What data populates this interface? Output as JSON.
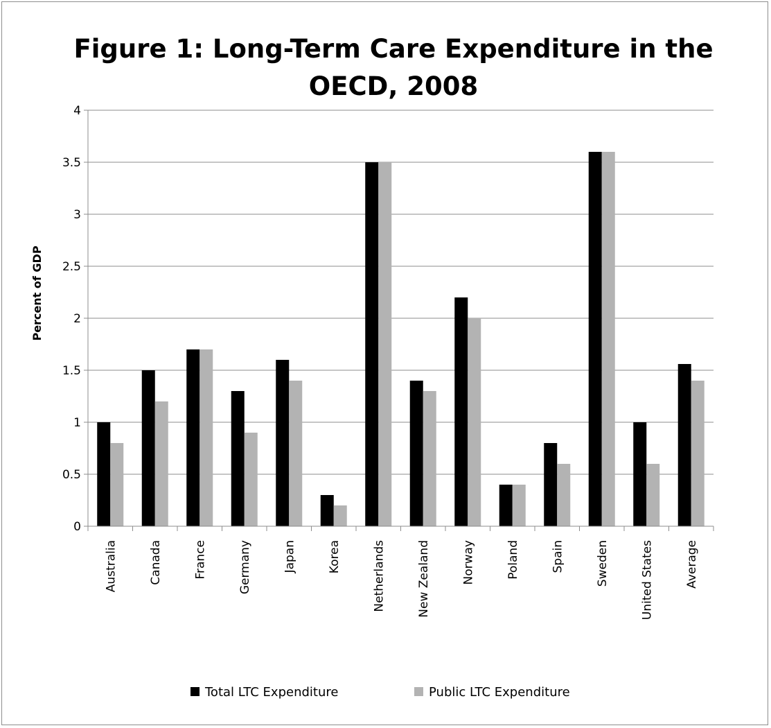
{
  "chart_data": {
    "type": "bar",
    "title_lines": [
      "Figure 1: Long-Term Care Expenditure in the",
      "OECD, 2008"
    ],
    "xlabel": "",
    "ylabel": "Percent of GDP",
    "ylim": [
      0,
      4
    ],
    "yticks": [
      "0",
      "0.5",
      "1",
      "1.5",
      "2",
      "2.5",
      "3",
      "3.5",
      "4"
    ],
    "grid": true,
    "legend_position": "bottom",
    "categories": [
      "Australia",
      "Canada",
      "France",
      "Germany",
      "Japan",
      "Korea",
      "Netherlands",
      "New Zealand",
      "Norway",
      "Poland",
      "Spain",
      "Sweden",
      "United States",
      "Average"
    ],
    "series": [
      {
        "name": "Total LTC Expenditure",
        "color": "#000000",
        "values": [
          1.0,
          1.5,
          1.7,
          1.3,
          1.6,
          0.3,
          3.5,
          1.4,
          2.2,
          0.4,
          0.8,
          3.6,
          1.0,
          1.56
        ]
      },
      {
        "name": "Public LTC Expenditure",
        "color": "#b3b3b3",
        "values": [
          0.8,
          1.2,
          1.7,
          0.9,
          1.4,
          0.2,
          3.5,
          1.3,
          2.0,
          0.4,
          0.6,
          3.6,
          0.6,
          1.4
        ]
      }
    ]
  }
}
